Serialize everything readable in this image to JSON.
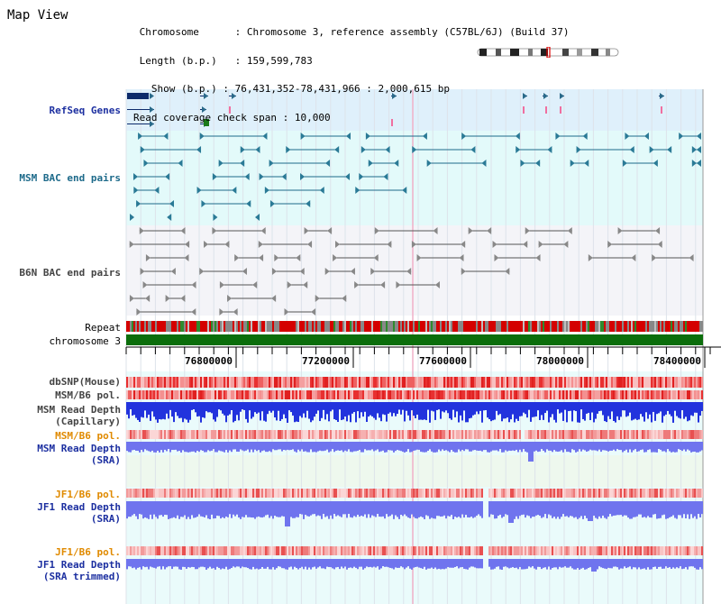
{
  "window": {
    "title": "Map View"
  },
  "info": {
    "chromosome_label": "Chromosome",
    "chromosome_value": "Chromosome 3, reference assembly (C57BL/6J) (Build 37)",
    "length_label": "Length (b.p.)",
    "length_value": "159,599,783",
    "show_label": "Show (b.p.)",
    "show_value": "76,431,352-78,431,966 : 2,000,615 bp",
    "coverage_label": "Read coverage check span",
    "coverage_value": "10,000"
  },
  "tracks": {
    "refseq": "RefSeq Genes",
    "msm_bac": "MSM BAC end pairs",
    "b6n_bac": "B6N BAC end pairs",
    "repeat": "Repeat",
    "chromosome": "chromosome 3",
    "dbsnp": "dbSNP(Mouse)",
    "msm_b6_pol_1": "MSM/B6 pol.",
    "msm_depth_cap_1": "MSM Read Depth",
    "msm_depth_cap_2": "(Capillary)",
    "msm_b6_pol_2": "MSM/B6 pol.",
    "msm_depth_sra_1": "MSM Read Depth",
    "msm_depth_sra_2": "(SRA)",
    "jf1_b6_pol_1": "JF1/B6 pol.",
    "jf1_depth_sra_1": "JF1 Read Depth",
    "jf1_depth_sra_2": "(SRA)",
    "jf1_b6_pol_2": "JF1/B6 pol.",
    "jf1_depth_trim_1": "JF1 Read Depth",
    "jf1_depth_trim_2": "(SRA trimmed)"
  },
  "axis": {
    "ticks": [
      "76800000",
      "77200000",
      "77600000",
      "78000000",
      "78400000"
    ]
  },
  "colors": {
    "refseq_bg": "#dff0fb",
    "msm_bac_bg": "#e3fafa",
    "b6n_bac_bg": "#f4f4f8",
    "depth_bg": "#eafbfb",
    "chromosome": "#0b6e0b",
    "repeat_red": "#d40000",
    "snp_red": "#e02020",
    "depth_blue": "#2233dd",
    "depth_light": "#6f74ee",
    "label_blue": "#1c2fa0",
    "label_teal": "#1d6a8a",
    "label_orange": "#e08a00"
  }
}
